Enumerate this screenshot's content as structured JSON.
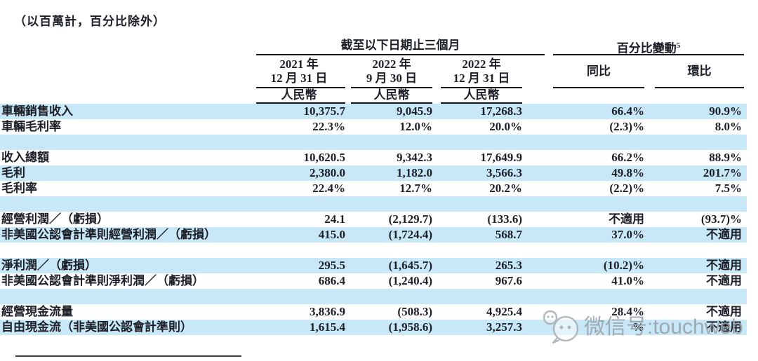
{
  "note": "（以百萬計，百分比除外）",
  "table": {
    "period_header": "截至以下日期止三個月",
    "pct_change_header": "百分比變動",
    "pct_change_superscript": "5",
    "columns": [
      {
        "line1": "2021 年",
        "line2": "12 月 31 日",
        "currency": "人民幣"
      },
      {
        "line1": "2022 年",
        "line2": "9 月 30 日",
        "currency": "人民幣"
      },
      {
        "line1": "2022 年",
        "line2": "12 月 31 日",
        "currency": "人民幣"
      }
    ],
    "change_columns": [
      {
        "label": "同比"
      },
      {
        "label": "環比"
      }
    ],
    "rows": [
      {
        "label": "車輛銷售收入",
        "v1": "10,375.7",
        "v2": "9,045.9",
        "v3": "17,268.3",
        "yoy": "66.4%",
        "qoq": "90.9%",
        "shade": true
      },
      {
        "label": "車輛毛利率",
        "v1": "22.3%",
        "v2": "12.0%",
        "v3": "20.0%",
        "yoy": "(2.3)%",
        "qoq": "8.0%",
        "shade": false
      },
      {
        "label": "",
        "v1": "",
        "v2": "",
        "v3": "",
        "yoy": "",
        "qoq": "",
        "shade": true
      },
      {
        "label": "收入總額",
        "v1": "10,620.5",
        "v2": "9,342.3",
        "v3": "17,649.9",
        "yoy": "66.2%",
        "qoq": "88.9%",
        "shade": false
      },
      {
        "label": "毛利",
        "v1": "2,380.0",
        "v2": "1,182.0",
        "v3": "3,566.3",
        "yoy": "49.8%",
        "qoq": "201.7%",
        "shade": true
      },
      {
        "label": "毛利率",
        "v1": "22.4%",
        "v2": "12.7%",
        "v3": "20.2%",
        "yoy": "(2.2)%",
        "qoq": "7.5%",
        "shade": false
      },
      {
        "label": "",
        "v1": "",
        "v2": "",
        "v3": "",
        "yoy": "",
        "qoq": "",
        "shade": true
      },
      {
        "label": "經營利潤／（虧損）",
        "v1": "24.1",
        "v2": "(2,129.7)",
        "v3": "(133.6)",
        "yoy": "不適用",
        "qoq": "(93.7)%",
        "shade": false
      },
      {
        "label": "非美國公認會計準則經營利潤／（虧損）",
        "v1": "415.0",
        "v2": "(1,724.4)",
        "v3": "568.7",
        "yoy": "37.0%",
        "qoq": "不適用",
        "shade": true
      },
      {
        "label": "",
        "v1": "",
        "v2": "",
        "v3": "",
        "yoy": "",
        "qoq": "",
        "shade": false
      },
      {
        "label": "淨利潤／（虧損）",
        "v1": "295.5",
        "v2": "(1,645.7)",
        "v3": "265.3",
        "yoy": "(10.2)%",
        "qoq": "不適用",
        "shade": true
      },
      {
        "label": "非美國公認會計準則淨利潤／（虧損）",
        "v1": "686.4",
        "v2": "(1,240.4)",
        "v3": "967.6",
        "yoy": "41.0%",
        "qoq": "不適用",
        "shade": false
      },
      {
        "label": "",
        "v1": "",
        "v2": "",
        "v3": "",
        "yoy": "",
        "qoq": "",
        "shade": true
      },
      {
        "label": "經營現金流量",
        "v1": "3,836.9",
        "v2": "(508.3)",
        "v3": "4,925.4",
        "yoy": "28.4%",
        "qoq": "不適用",
        "shade": false
      },
      {
        "label": "自由現金流（非美國公認會計準則）",
        "v1": "1,615.4",
        "v2": "(1,958.6)",
        "v3": "3,257.3",
        "yoy": "%",
        "qoq": "不適用",
        "shade": true
      }
    ]
  },
  "watermark": {
    "text": "微信号:touchweb",
    "icon": "wechat-icon"
  },
  "colors": {
    "row_stripe": "#c9e8f7",
    "text": "#1c1f27",
    "rule": "#15151a",
    "watermark": "#99a2a9"
  }
}
